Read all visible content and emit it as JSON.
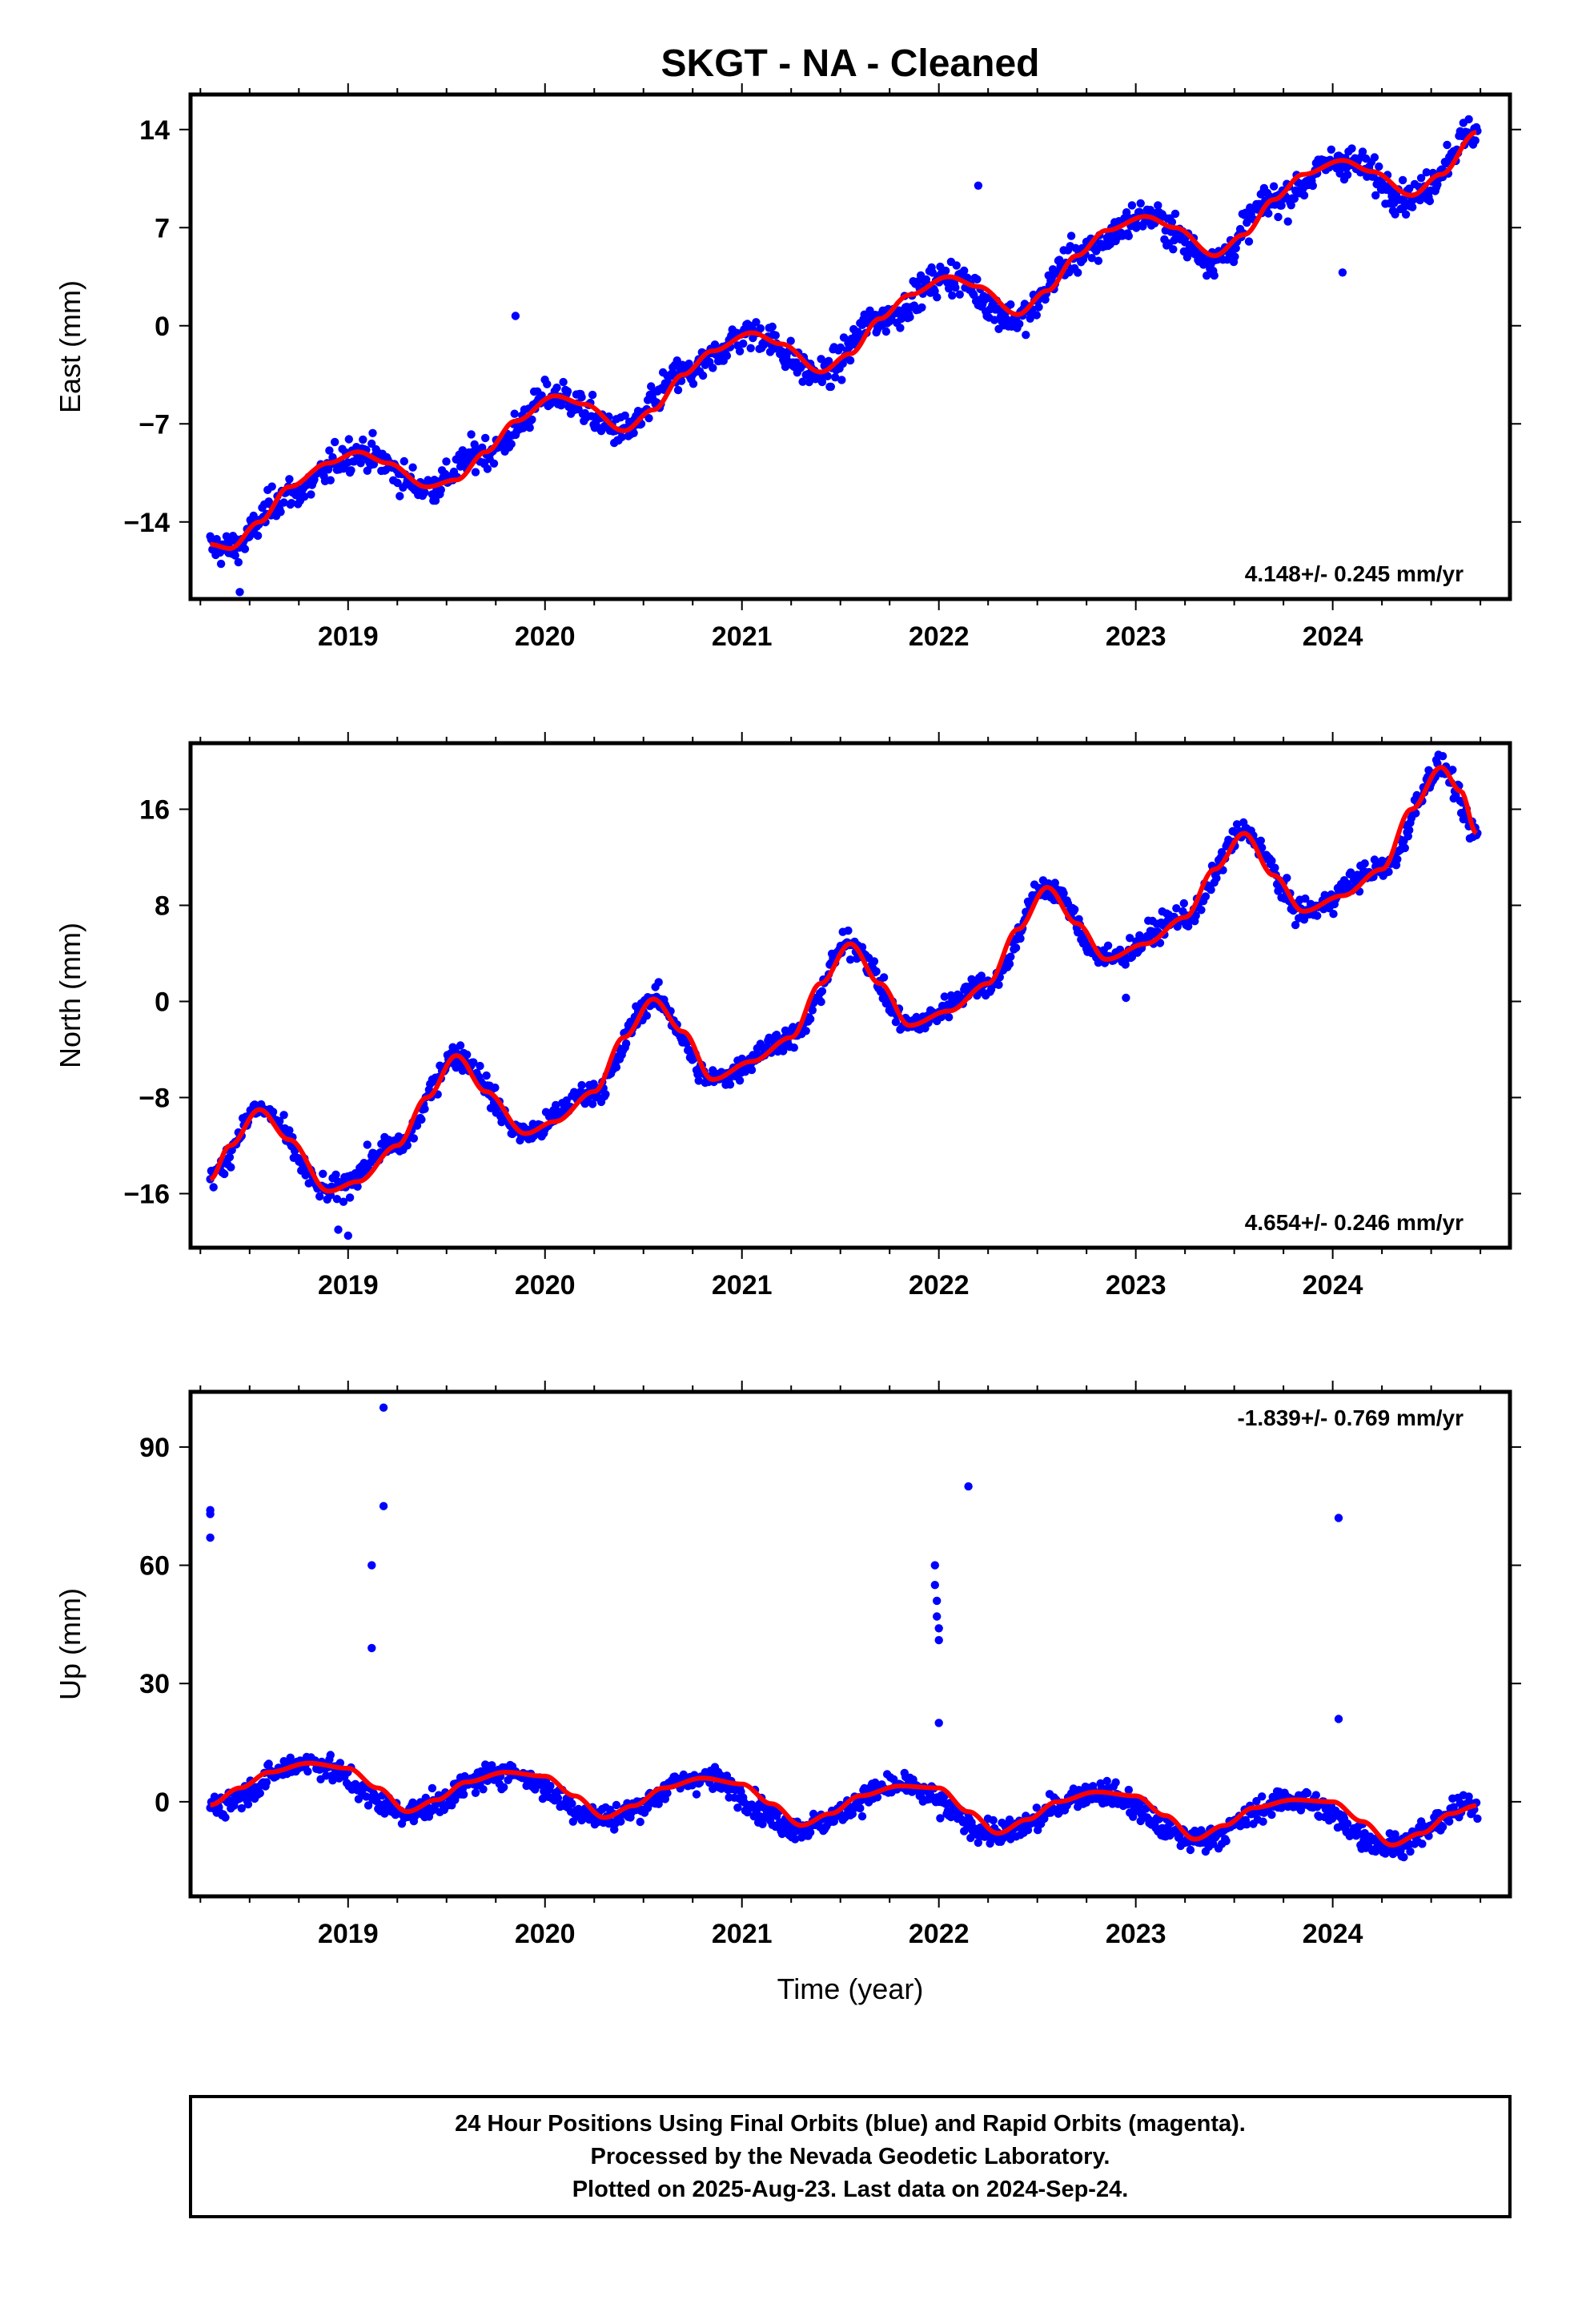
{
  "title": "SKGT  - NA - Cleaned",
  "xlabel": "Time (year)",
  "footer": [
    "24 Hour Positions Using Final Orbits (blue) and Rapid Orbits (magenta).",
    "Processed by the Nevada Geodetic Laboratory.",
    "Plotted on 2025-Aug-23. Last data on 2024-Sep-24."
  ],
  "colors": {
    "points": "#0000ff",
    "fit": "#ff0000",
    "frame": "#000000"
  },
  "chart_data": [
    {
      "type": "scatter",
      "component": "east",
      "ylabel": "East (mm)",
      "rate_label": "4.148+/- 0.245 mm/yr",
      "rate_position": "bottom-right",
      "xlim": [
        2018.2,
        2024.9
      ],
      "ylim": [
        -19.5,
        16.5
      ],
      "xticks": [
        2019,
        2020,
        2021,
        2022,
        2023,
        2024
      ],
      "yticks": [
        -14,
        -7,
        0,
        7,
        14
      ],
      "grid": false,
      "model": {
        "trend_t0": 2018.3,
        "trend_y0": -15.5,
        "trend_slope": 4.148,
        "anchors": [
          [
            2018.3,
            -15.8
          ],
          [
            2018.4,
            -15.9
          ],
          [
            2018.7,
            -12.0
          ],
          [
            2019.05,
            -9.0
          ],
          [
            2019.4,
            -11.5
          ],
          [
            2019.7,
            -9.0
          ],
          [
            2020.05,
            -5.0
          ],
          [
            2020.4,
            -7.5
          ],
          [
            2020.7,
            -3.5
          ],
          [
            2021.05,
            -0.5
          ],
          [
            2021.4,
            -3.5
          ],
          [
            2021.7,
            0.5
          ],
          [
            2022.05,
            3.5
          ],
          [
            2022.4,
            0.5
          ],
          [
            2022.7,
            5.0
          ],
          [
            2023.05,
            7.8
          ],
          [
            2023.4,
            4.8
          ],
          [
            2023.7,
            9.0
          ],
          [
            2024.05,
            11.8
          ],
          [
            2024.4,
            9.2
          ],
          [
            2024.73,
            13.8
          ]
        ],
        "noise": 1.5
      },
      "outliers": [
        [
          2019.85,
          0.7
        ],
        [
          2022.2,
          10.0
        ],
        [
          2024.05,
          3.8
        ],
        [
          2018.45,
          -19.0
        ]
      ],
      "fit": [
        [
          2018.3,
          -15.6
        ],
        [
          2018.4,
          -15.9
        ],
        [
          2018.55,
          -14.0
        ],
        [
          2018.7,
          -11.5
        ],
        [
          2018.9,
          -9.8
        ],
        [
          2019.05,
          -9.0
        ],
        [
          2019.2,
          -9.8
        ],
        [
          2019.4,
          -11.5
        ],
        [
          2019.55,
          -11.0
        ],
        [
          2019.7,
          -9.0
        ],
        [
          2019.85,
          -6.8
        ],
        [
          2020.05,
          -5.0
        ],
        [
          2020.2,
          -5.6
        ],
        [
          2020.4,
          -7.5
        ],
        [
          2020.55,
          -6.0
        ],
        [
          2020.7,
          -3.5
        ],
        [
          2020.85,
          -1.8
        ],
        [
          2021.05,
          -0.5
        ],
        [
          2021.2,
          -1.3
        ],
        [
          2021.4,
          -3.3
        ],
        [
          2021.55,
          -2.0
        ],
        [
          2021.7,
          0.5
        ],
        [
          2021.85,
          2.2
        ],
        [
          2022.05,
          3.5
        ],
        [
          2022.2,
          2.8
        ],
        [
          2022.4,
          0.8
        ],
        [
          2022.55,
          2.5
        ],
        [
          2022.7,
          5.0
        ],
        [
          2022.85,
          6.8
        ],
        [
          2023.05,
          7.8
        ],
        [
          2023.2,
          7.0
        ],
        [
          2023.4,
          5.0
        ],
        [
          2023.55,
          6.5
        ],
        [
          2023.7,
          9.0
        ],
        [
          2023.85,
          10.8
        ],
        [
          2024.05,
          11.8
        ],
        [
          2024.2,
          11.0
        ],
        [
          2024.4,
          9.3
        ],
        [
          2024.55,
          10.8
        ],
        [
          2024.73,
          13.8
        ]
      ]
    },
    {
      "type": "scatter",
      "component": "north",
      "ylabel": "North (mm)",
      "rate_label": "4.654+/- 0.246 mm/yr",
      "rate_position": "bottom-right",
      "xlim": [
        2018.2,
        2024.9
      ],
      "ylim": [
        -20.5,
        21.5
      ],
      "xticks": [
        2019,
        2020,
        2021,
        2022,
        2023,
        2024
      ],
      "yticks": [
        -16,
        -8,
        0,
        8,
        16
      ],
      "grid": false,
      "model": {
        "trend_t0": 2018.3,
        "trend_y0": -15.0,
        "trend_slope": 4.654,
        "anchors": [
          [
            2018.3,
            -14.5
          ],
          [
            2018.55,
            -9.0
          ],
          [
            2018.9,
            -15.8
          ],
          [
            2019.25,
            -12.0
          ],
          [
            2019.55,
            -4.5
          ],
          [
            2019.9,
            -11.0
          ],
          [
            2020.25,
            -7.5
          ],
          [
            2020.55,
            0.2
          ],
          [
            2020.85,
            -6.5
          ],
          [
            2021.25,
            -3.0
          ],
          [
            2021.55,
            4.8
          ],
          [
            2021.85,
            -2.0
          ],
          [
            2022.25,
            1.5
          ],
          [
            2022.55,
            9.5
          ],
          [
            2022.85,
            3.5
          ],
          [
            2023.25,
            7.0
          ],
          [
            2023.55,
            14.0
          ],
          [
            2023.85,
            7.5
          ],
          [
            2024.25,
            11.0
          ],
          [
            2024.55,
            19.5
          ],
          [
            2024.73,
            14.0
          ]
        ],
        "noise": 1.3
      },
      "outliers": [
        [
          2018.95,
          -19.0
        ],
        [
          2019.0,
          -19.5
        ],
        [
          2022.95,
          0.3
        ],
        [
          2023.15,
          6.5
        ]
      ],
      "fit": [
        [
          2018.3,
          -14.8
        ],
        [
          2018.4,
          -12.0
        ],
        [
          2018.55,
          -9.0
        ],
        [
          2018.7,
          -11.5
        ],
        [
          2018.9,
          -15.8
        ],
        [
          2019.05,
          -15.0
        ],
        [
          2019.25,
          -12.0
        ],
        [
          2019.4,
          -8.0
        ],
        [
          2019.55,
          -4.5
        ],
        [
          2019.7,
          -7.5
        ],
        [
          2019.9,
          -11.0
        ],
        [
          2020.05,
          -10.0
        ],
        [
          2020.25,
          -7.5
        ],
        [
          2020.4,
          -3.0
        ],
        [
          2020.55,
          0.2
        ],
        [
          2020.7,
          -2.5
        ],
        [
          2020.85,
          -6.5
        ],
        [
          2021.05,
          -5.0
        ],
        [
          2021.25,
          -3.0
        ],
        [
          2021.4,
          1.5
        ],
        [
          2021.55,
          4.8
        ],
        [
          2021.7,
          1.5
        ],
        [
          2021.85,
          -2.0
        ],
        [
          2022.05,
          -0.8
        ],
        [
          2022.25,
          1.5
        ],
        [
          2022.4,
          6.0
        ],
        [
          2022.55,
          9.5
        ],
        [
          2022.7,
          6.5
        ],
        [
          2022.85,
          3.5
        ],
        [
          2023.05,
          4.8
        ],
        [
          2023.25,
          7.0
        ],
        [
          2023.4,
          11.0
        ],
        [
          2023.55,
          14.0
        ],
        [
          2023.7,
          10.5
        ],
        [
          2023.85,
          7.5
        ],
        [
          2024.05,
          8.8
        ],
        [
          2024.25,
          11.0
        ],
        [
          2024.4,
          16.0
        ],
        [
          2024.55,
          19.5
        ],
        [
          2024.65,
          17.5
        ],
        [
          2024.73,
          14.0
        ]
      ]
    },
    {
      "type": "scatter",
      "component": "up",
      "ylabel": "Up (mm)",
      "rate_label": "-1.839+/- 0.769 mm/yr",
      "rate_position": "top-right",
      "xlim": [
        2018.2,
        2024.9
      ],
      "ylim": [
        -24,
        104
      ],
      "xticks": [
        2019,
        2020,
        2021,
        2022,
        2023,
        2024
      ],
      "yticks": [
        0,
        30,
        60,
        90
      ],
      "grid": false,
      "model": {
        "trend_t0": 2018.3,
        "trend_y0": 0,
        "trend_slope": 0,
        "anchors": [
          [
            2018.3,
            -1.0
          ],
          [
            2018.8,
            10.0
          ],
          [
            2019.3,
            -2.5
          ],
          [
            2019.8,
            7.5
          ],
          [
            2020.3,
            -4.0
          ],
          [
            2020.8,
            6.0
          ],
          [
            2021.3,
            -6.5
          ],
          [
            2021.8,
            4.0
          ],
          [
            2022.3,
            -8.0
          ],
          [
            2022.8,
            2.5
          ],
          [
            2023.3,
            -9.5
          ],
          [
            2023.8,
            0.5
          ],
          [
            2024.3,
            -11.0
          ],
          [
            2024.73,
            -1.0
          ]
        ],
        "noise": 4.0
      },
      "outliers": [
        [
          2018.3,
          74
        ],
        [
          2018.3,
          73
        ],
        [
          2018.3,
          67
        ],
        [
          2019.12,
          60
        ],
        [
          2019.12,
          39
        ],
        [
          2019.18,
          100
        ],
        [
          2019.18,
          75
        ],
        [
          2021.98,
          60
        ],
        [
          2021.98,
          55
        ],
        [
          2021.99,
          51
        ],
        [
          2021.99,
          47
        ],
        [
          2022.0,
          44
        ],
        [
          2022.0,
          41
        ],
        [
          2022.0,
          20
        ],
        [
          2022.15,
          80
        ],
        [
          2024.03,
          72
        ],
        [
          2024.03,
          21
        ]
      ],
      "fit": [
        [
          2018.3,
          -0.8
        ],
        [
          2018.45,
          3.5
        ],
        [
          2018.6,
          7.5
        ],
        [
          2018.8,
          9.8
        ],
        [
          2019.0,
          8.5
        ],
        [
          2019.15,
          3.5
        ],
        [
          2019.3,
          -2.5
        ],
        [
          2019.45,
          0.5
        ],
        [
          2019.6,
          5.0
        ],
        [
          2019.8,
          7.5
        ],
        [
          2020.0,
          6.5
        ],
        [
          2020.15,
          1.5
        ],
        [
          2020.3,
          -4.0
        ],
        [
          2020.45,
          -1.0
        ],
        [
          2020.6,
          3.5
        ],
        [
          2020.8,
          6.0
        ],
        [
          2021.0,
          4.5
        ],
        [
          2021.15,
          -0.5
        ],
        [
          2021.3,
          -6.0
        ],
        [
          2021.45,
          -3.0
        ],
        [
          2021.6,
          1.5
        ],
        [
          2021.8,
          4.0
        ],
        [
          2022.0,
          3.5
        ],
        [
          2022.15,
          -2.5
        ],
        [
          2022.3,
          -8.0
        ],
        [
          2022.45,
          -4.5
        ],
        [
          2022.6,
          0.0
        ],
        [
          2022.8,
          2.5
        ],
        [
          2023.0,
          1.5
        ],
        [
          2023.15,
          -3.5
        ],
        [
          2023.3,
          -9.5
        ],
        [
          2023.45,
          -6.0
        ],
        [
          2023.6,
          -1.5
        ],
        [
          2023.8,
          0.5
        ],
        [
          2024.0,
          0.0
        ],
        [
          2024.15,
          -5.0
        ],
        [
          2024.3,
          -11.0
        ],
        [
          2024.45,
          -8.0
        ],
        [
          2024.6,
          -3.0
        ],
        [
          2024.73,
          -1.0
        ]
      ]
    }
  ]
}
